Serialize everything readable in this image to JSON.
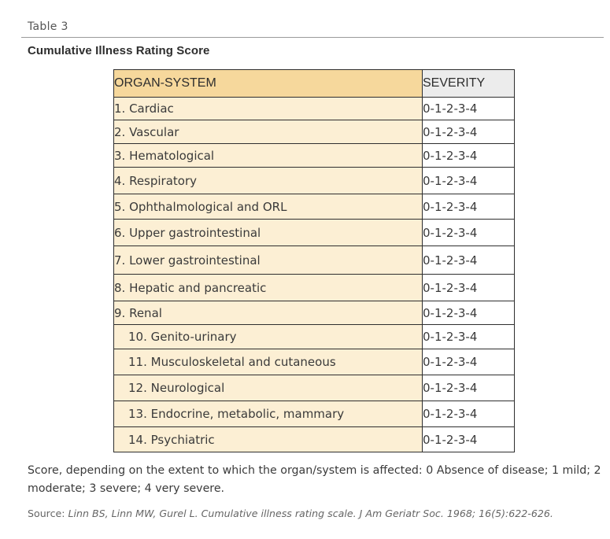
{
  "table_label": "Table 3",
  "title": "Cumulative Illness Rating Score",
  "headers": {
    "organ_system": "ORGAN-SYSTEM",
    "severity": "SEVERITY"
  },
  "rows": [
    {
      "organ": "1. Cardiac",
      "severity": "0-1-2-3-4"
    },
    {
      "organ": "2. Vascular",
      "severity": "0-1-2-3-4"
    },
    {
      "organ": "3. Hematological",
      "severity": "0-1-2-3-4"
    },
    {
      "organ": "4. Respiratory",
      "severity": "0-1-2-3-4"
    },
    {
      "organ": "5. Ophthalmological and ORL",
      "severity": "0-1-2-3-4"
    },
    {
      "organ": "6. Upper gastrointestinal",
      "severity": "0-1-2-3-4"
    },
    {
      "organ": "7. Lower gastrointestinal",
      "severity": "0-1-2-3-4"
    },
    {
      "organ": "8. Hepatic and pancreatic",
      "severity": "0-1-2-3-4"
    },
    {
      "organ": "9. Renal",
      "severity": "0-1-2-3-4"
    },
    {
      "organ": "10. Genito-urinary",
      "severity": "0-1-2-3-4"
    },
    {
      "organ": "11. Musculoskeletal and cutaneous",
      "severity": "0-1-2-3-4"
    },
    {
      "organ": "12. Neurological",
      "severity": "0-1-2-3-4"
    },
    {
      "organ": "13. Endocrine, metabolic, mammary",
      "severity": "0-1-2-3-4"
    },
    {
      "organ": "14. Psychiatric",
      "severity": "0-1-2-3-4"
    }
  ],
  "footnote": "Score, depending on the extent to which the organ/system is affected: 0 Absence of disease; 1 mild; 2 moderate; 3 severe; 4 very severe.",
  "source": {
    "label": "Source:",
    "citation": "Linn BS, Linn MW, Gurel L. Cumulative illness rating scale. J Am Geriatr Soc. 1968; 16(5):622-626."
  },
  "colors": {
    "header_organ_bg": "#f6d89c",
    "header_severity_bg": "#ececec",
    "organ_cell_bg": "#fcefd4",
    "border": "#2e2e2e"
  }
}
